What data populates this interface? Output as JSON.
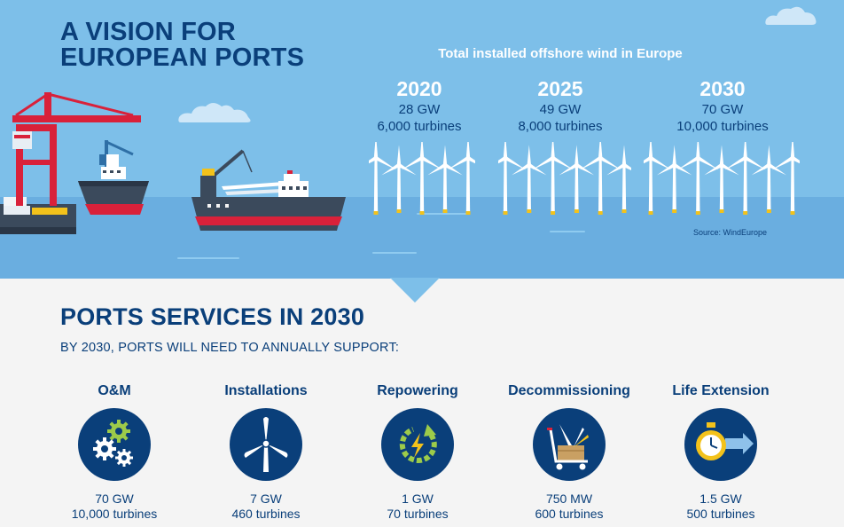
{
  "header": {
    "title_line1": "A VISION FOR",
    "title_line2": "EUROPEAN PORTS"
  },
  "wind": {
    "heading": "Total installed offshore wind in Europe",
    "columns": [
      {
        "year": "2020",
        "capacity": "28 GW",
        "turbines": "6,000 turbines"
      },
      {
        "year": "2025",
        "capacity": "49 GW",
        "turbines": "8,000 turbines"
      },
      {
        "year": "2030",
        "capacity": "70 GW",
        "turbines": "10,000 turbines"
      }
    ],
    "source": "Source: WindEurope"
  },
  "services": {
    "heading": "PORTS SERVICES IN 2030",
    "subheading": "BY 2030, PORTS WILL NEED TO ANNUALLY SUPPORT:",
    "items": [
      {
        "name": "O&M",
        "capacity": "70 GW",
        "turbines": "10,000 turbines",
        "icon": "gears-icon"
      },
      {
        "name": "Installations",
        "capacity": "7 GW",
        "turbines": "460 turbines",
        "icon": "wind-turbine-icon"
      },
      {
        "name": "Repowering",
        "capacity": "1 GW",
        "turbines": "70 turbines",
        "icon": "repower-icon"
      },
      {
        "name": "Decommissioning",
        "capacity": "750 MW",
        "turbines": "600 turbines",
        "icon": "trolley-icon"
      },
      {
        "name": "Life Extension",
        "capacity": "1.5 GW",
        "turbines": "500 turbines",
        "icon": "stopwatch-icon"
      }
    ]
  },
  "colors": {
    "navy": "#0a3f7a",
    "sky": "#7dbfe9",
    "sea": "#6aaee0",
    "crane_red": "#d9213a",
    "accent_green": "#9ccb4a",
    "accent_yellow": "#f3c21b"
  }
}
